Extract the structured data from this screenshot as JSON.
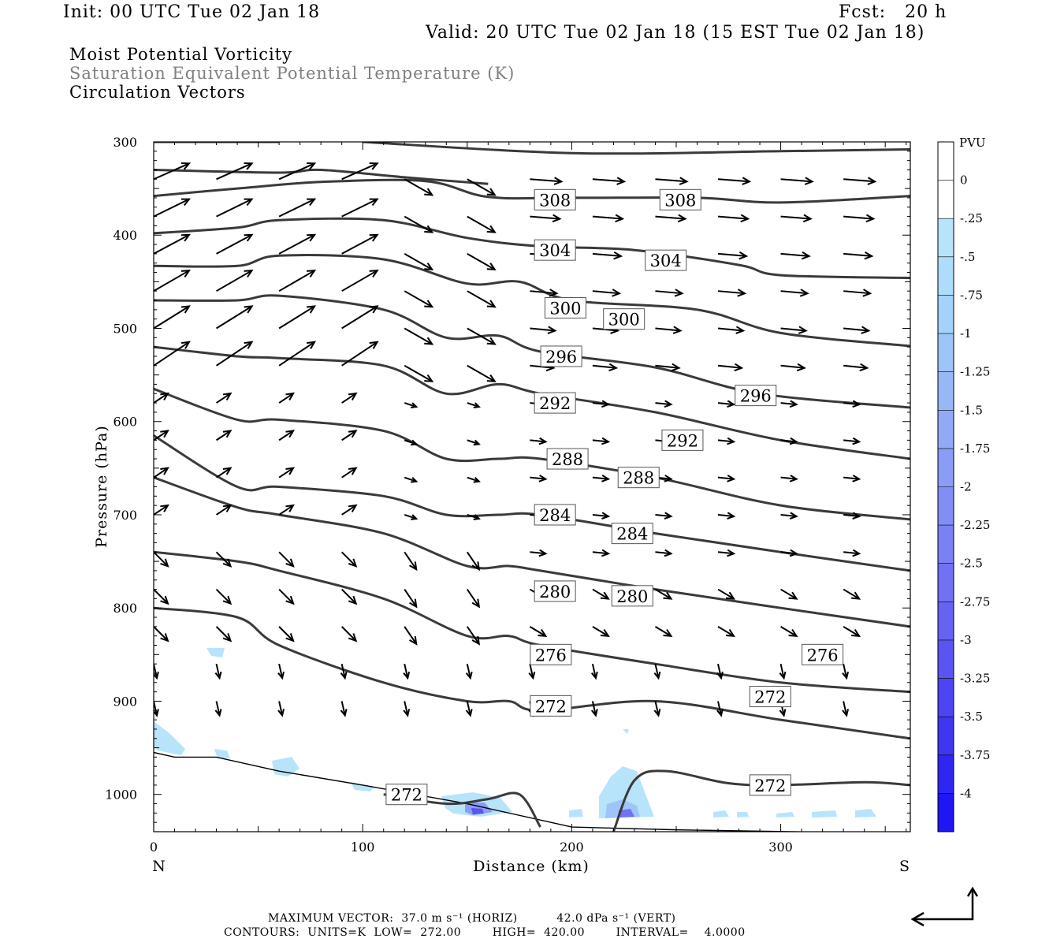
{
  "header": {
    "init": "Init: 00 UTC Tue 02 Jan 18",
    "fcst": "Fcst:   20 h",
    "valid": "Valid: 20 UTC Tue 02 Jan 18 (15 EST Tue 02 Jan 18)"
  },
  "titles": {
    "mpv": "Moist Potential Vorticity",
    "theta": "Saturation Equivalent Potential Temperature (K)",
    "vectors": "Circulation Vectors"
  },
  "footer": {
    "max_vector": "MAXIMUM VECTOR:  37.0 m s⁻¹ (HORIZ)          42.0 dPa s⁻¹ (VERT)",
    "contours": "CONTOURS:  UNITS=K  LOW=  272.00        HIGH=  420.00        INTERVAL=    4.0000"
  },
  "colors": {
    "contour": "#3a3a3a",
    "mpv_scale": [
      "#ffffff",
      "#ffffff",
      "#b8e4fb",
      "#aedcfa",
      "#a5d2fa",
      "#9ec4f8",
      "#98b7f7",
      "#91aaf6",
      "#8a9cf5",
      "#838ef4",
      "#7b80f3",
      "#7171f2",
      "#6663f1",
      "#5a54f1",
      "#4d45f1",
      "#3f36f1",
      "#2f26f2",
      "#1f16f3"
    ]
  },
  "chart_data": {
    "type": "cross-section",
    "xlabel": "Distance (km)",
    "ylabel": "Pressure (hPa)",
    "xlim": [
      0,
      362
    ],
    "ylim": [
      300,
      1040
    ],
    "y_scale": "pressure (inverted)",
    "x_ticks": [
      0,
      100,
      200,
      300
    ],
    "y_ticks": [
      300,
      400,
      500,
      600,
      700,
      800,
      900,
      1000
    ],
    "endpoint_labels": {
      "left": "N",
      "right": "S"
    },
    "colorbar": {
      "label": "PVU",
      "levels": [
        "0",
        "-.25",
        "-.5",
        "-.75",
        "-1",
        "-1.25",
        "-1.5",
        "-1.75",
        "-2",
        "-2.25",
        "-2.5",
        "-2.75",
        "-3",
        "-3.25",
        "-3.5",
        "-3.75",
        "-4"
      ]
    },
    "contours": [
      {
        "level": 308,
        "points": [
          [
            0,
            358
          ],
          [
            40,
            350
          ],
          [
            80,
            343
          ],
          [
            130,
            342
          ],
          [
            160,
            359
          ],
          [
            200,
            360
          ],
          [
            260,
            360
          ],
          [
            300,
            365
          ],
          [
            362,
            358
          ]
        ]
      },
      {
        "level": 304,
        "points": [
          [
            0,
            398
          ],
          [
            40,
            392
          ],
          [
            60,
            384
          ],
          [
            110,
            384
          ],
          [
            150,
            403
          ],
          [
            185,
            412
          ],
          [
            230,
            416
          ],
          [
            280,
            432
          ],
          [
            300,
            443
          ],
          [
            362,
            446
          ]
        ]
      },
      {
        "level": 300,
        "points": [
          [
            0,
            433
          ],
          [
            40,
            433
          ],
          [
            60,
            422
          ],
          [
            110,
            426
          ],
          [
            150,
            452
          ],
          [
            175,
            450
          ],
          [
            200,
            470
          ],
          [
            260,
            480
          ],
          [
            300,
            505
          ],
          [
            362,
            519
          ]
        ]
      },
      {
        "level": 296,
        "points": [
          [
            0,
            470
          ],
          [
            40,
            470
          ],
          [
            60,
            465
          ],
          [
            110,
            480
          ],
          [
            140,
            510
          ],
          [
            165,
            508
          ],
          [
            185,
            525
          ],
          [
            240,
            542
          ],
          [
            290,
            570
          ],
          [
            362,
            585
          ]
        ]
      },
      {
        "level": 292,
        "points": [
          [
            0,
            520
          ],
          [
            40,
            530
          ],
          [
            60,
            532
          ],
          [
            110,
            540
          ],
          [
            140,
            570
          ],
          [
            165,
            560
          ],
          [
            185,
            570
          ],
          [
            240,
            590
          ],
          [
            300,
            620
          ],
          [
            362,
            640
          ]
        ]
      },
      {
        "level": 288,
        "points": [
          [
            0,
            565
          ],
          [
            40,
            598
          ],
          [
            60,
            598
          ],
          [
            110,
            610
          ],
          [
            140,
            640
          ],
          [
            165,
            640
          ],
          [
            185,
            640
          ],
          [
            240,
            660
          ],
          [
            300,
            690
          ],
          [
            362,
            705
          ]
        ]
      },
      {
        "level": 284,
        "points": [
          [
            0,
            615
          ],
          [
            40,
            670
          ],
          [
            60,
            670
          ],
          [
            110,
            680
          ],
          [
            140,
            700
          ],
          [
            165,
            700
          ],
          [
            185,
            700
          ],
          [
            240,
            720
          ],
          [
            300,
            740
          ],
          [
            362,
            760
          ]
        ]
      },
      {
        "level": 280,
        "points": [
          [
            0,
            660
          ],
          [
            40,
            692
          ],
          [
            60,
            700
          ],
          [
            110,
            720
          ],
          [
            150,
            755
          ],
          [
            170,
            755
          ],
          [
            185,
            760
          ],
          [
            240,
            780
          ],
          [
            300,
            800
          ],
          [
            362,
            820
          ]
        ]
      },
      {
        "level": 276,
        "points": [
          [
            0,
            740
          ],
          [
            40,
            750
          ],
          [
            60,
            760
          ],
          [
            110,
            790
          ],
          [
            150,
            830
          ],
          [
            170,
            830
          ],
          [
            185,
            840
          ],
          [
            240,
            860
          ],
          [
            300,
            880
          ],
          [
            362,
            890
          ]
        ]
      },
      {
        "level": 272,
        "points": [
          [
            0,
            800
          ],
          [
            40,
            810
          ],
          [
            60,
            840
          ],
          [
            110,
            880
          ],
          [
            150,
            900
          ],
          [
            170,
            900
          ],
          [
            185,
            910
          ],
          [
            240,
            900
          ],
          [
            300,
            920
          ],
          [
            362,
            940
          ]
        ]
      }
    ],
    "contour_labels": [
      {
        "text": "308",
        "x": 192,
        "p": 362
      },
      {
        "text": "308",
        "x": 252,
        "p": 362
      },
      {
        "text": "304",
        "x": 192,
        "p": 416
      },
      {
        "text": "304",
        "x": 245,
        "p": 427
      },
      {
        "text": "300",
        "x": 197,
        "p": 478
      },
      {
        "text": "300",
        "x": 225,
        "p": 490
      },
      {
        "text": "296",
        "x": 195,
        "p": 530
      },
      {
        "text": "296",
        "x": 288,
        "p": 572
      },
      {
        "text": "292",
        "x": 192,
        "p": 580
      },
      {
        "text": "292",
        "x": 253,
        "p": 620
      },
      {
        "text": "288",
        "x": 198,
        "p": 640
      },
      {
        "text": "288",
        "x": 232,
        "p": 660
      },
      {
        "text": "284",
        "x": 192,
        "p": 700
      },
      {
        "text": "284",
        "x": 229,
        "p": 720
      },
      {
        "text": "280",
        "x": 192,
        "p": 782
      },
      {
        "text": "280",
        "x": 229,
        "p": 787
      },
      {
        "text": "276",
        "x": 190,
        "p": 850
      },
      {
        "text": "276",
        "x": 320,
        "p": 850
      },
      {
        "text": "272",
        "x": 190,
        "p": 905
      },
      {
        "text": "272",
        "x": 295,
        "p": 895
      },
      {
        "text": "272",
        "x": 121,
        "p": 1000
      },
      {
        "text": "272",
        "x": 295,
        "p": 990
      }
    ],
    "vector_columns_km": [
      0,
      30,
      60,
      90,
      120,
      150,
      180,
      210,
      240,
      270,
      300,
      330
    ],
    "vector_rows_hpa": [
      340,
      380,
      420,
      460,
      500,
      540,
      580,
      620,
      660,
      700,
      740,
      780,
      820,
      860,
      900
    ],
    "max_vector_horiz": "37.0 m s-1",
    "max_vector_vert": "42.0 dPa s-1"
  }
}
